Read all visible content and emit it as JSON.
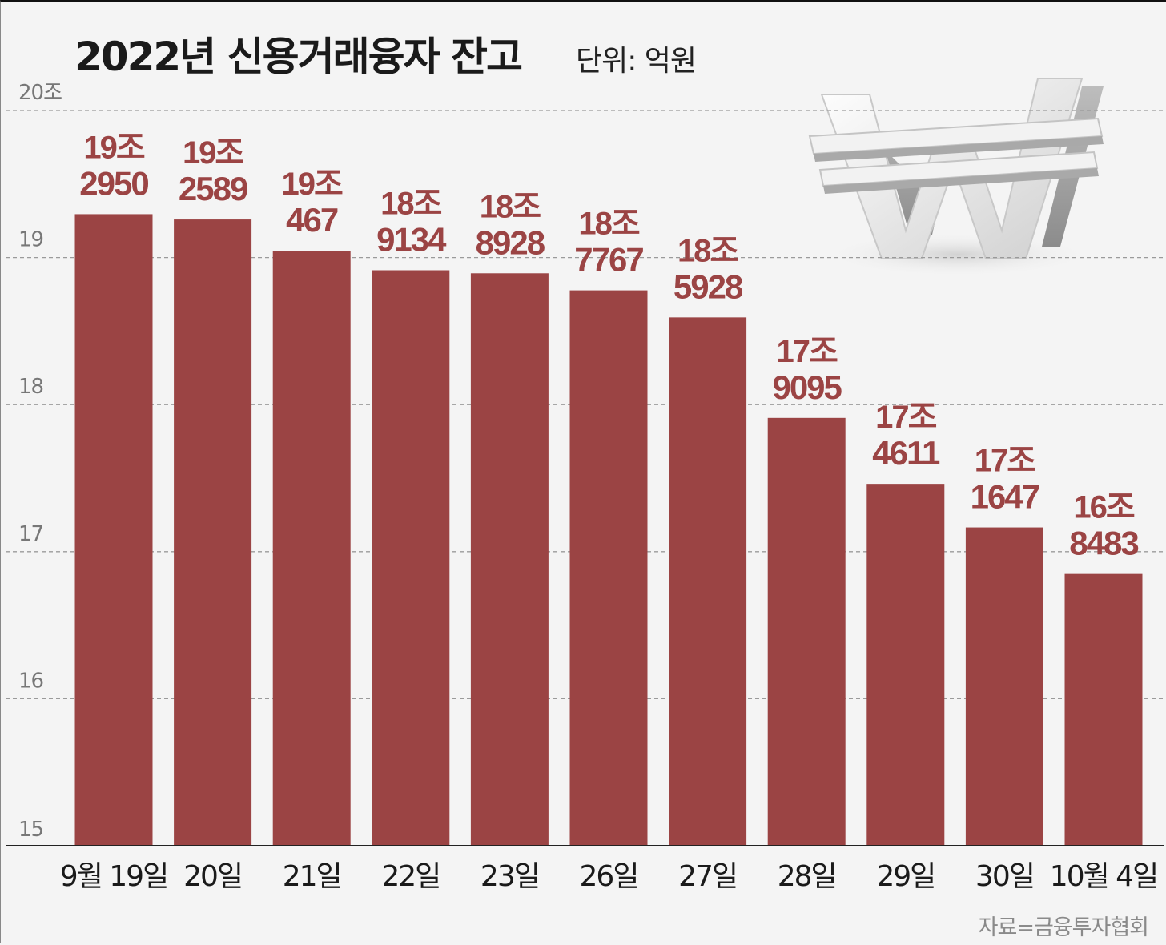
{
  "title": "2022년 신용거래융자 잔고",
  "unit_label": "단위: 억원",
  "source": "자료=금융투자협회",
  "bar_color": "#9b4444",
  "label_color": "#9b4444",
  "decoration_icon": "won-sign-3d-icon",
  "chart_data": {
    "type": "bar",
    "title": "2022년 신용거래융자 잔고",
    "unit": "단위: 억원",
    "categories": [
      "9월 19일",
      "20일",
      "21일",
      "22일",
      "23일",
      "26일",
      "27일",
      "28일",
      "29일",
      "30일",
      "10월 4일"
    ],
    "values": [
      192950,
      192589,
      190467,
      189134,
      188928,
      187767,
      185928,
      179095,
      174611,
      171647,
      168483
    ],
    "data_labels": [
      [
        "19조",
        "2950"
      ],
      [
        "19조",
        "2589"
      ],
      [
        "19조",
        "467"
      ],
      [
        "18조",
        "9134"
      ],
      [
        "18조",
        "8928"
      ],
      [
        "18조",
        "7767"
      ],
      [
        "18조",
        "5928"
      ],
      [
        "17조",
        "9095"
      ],
      [
        "17조",
        "4611"
      ],
      [
        "17조",
        "1647"
      ],
      [
        "16조",
        "8483"
      ]
    ],
    "yticks": [
      {
        "value": 150000,
        "label": "15"
      },
      {
        "value": 160000,
        "label": "16"
      },
      {
        "value": 170000,
        "label": "17"
      },
      {
        "value": 180000,
        "label": "18"
      },
      {
        "value": 190000,
        "label": "19"
      },
      {
        "value": 200000,
        "label": "20조"
      }
    ],
    "ylim": [
      150000,
      200000
    ],
    "grid": true,
    "xlabel": "",
    "ylabel": ""
  }
}
